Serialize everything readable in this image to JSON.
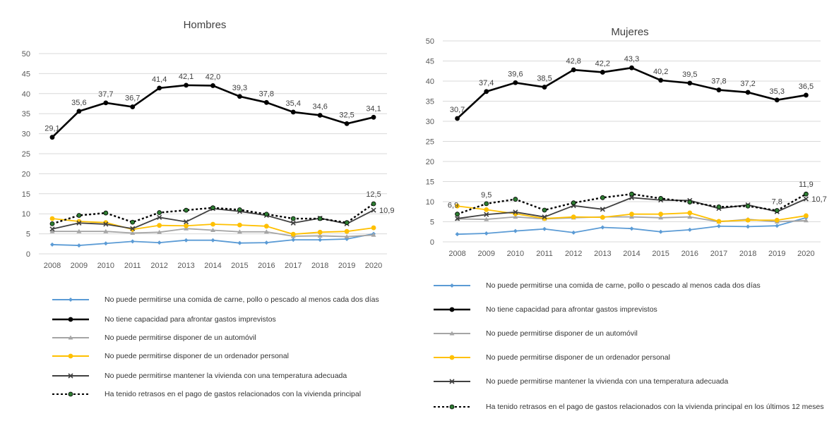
{
  "colors": {
    "s1": "#5b9bd5",
    "s2": "#000000",
    "s3": "#a5a5a5",
    "s4": "#ffc000",
    "s5": "#404040",
    "s6": "#000000",
    "s6_marker": "#2e7d32",
    "grid": "#d9d9d9",
    "axis_text": "#595959"
  },
  "chart_data": [
    {
      "type": "line",
      "title": "Hombres",
      "ylim": [
        0,
        50
      ],
      "y_ticks": [
        0,
        5,
        10,
        15,
        20,
        25,
        30,
        35,
        40,
        45,
        50
      ],
      "grid": true,
      "legend_position": "bottom",
      "x": [
        "2008",
        "2009",
        "2010",
        "2011",
        "2012",
        "2013",
        "2014",
        "2015",
        "2016",
        "2017",
        "2018",
        "2019",
        "2020"
      ],
      "series": [
        {
          "key": "s1",
          "name": "No puede permitirse una comida de carne, pollo o pescado al menos cada dos días",
          "marker": "diamond",
          "values": [
            2.3,
            2.1,
            2.6,
            3.1,
            2.8,
            3.4,
            3.4,
            2.7,
            2.8,
            3.5,
            3.5,
            3.7,
            5.0
          ],
          "labels": []
        },
        {
          "key": "s2",
          "name": "No tiene capacidad para afrontar gastos imprevistos",
          "marker": "circle",
          "values": [
            29.1,
            35.6,
            37.7,
            36.7,
            41.4,
            42.1,
            42.0,
            39.3,
            37.8,
            35.4,
            34.6,
            32.5,
            34.1
          ],
          "labels": [
            "29,1",
            "35,6",
            "37,7",
            "36,7",
            "41,4",
            "42,1",
            "42,0",
            "39,3",
            "37,8",
            "35,4",
            "34,6",
            "32,5",
            "34,1"
          ]
        },
        {
          "key": "s3",
          "name": "No puede permitirse disponer de un automóvil",
          "marker": "triangle",
          "values": [
            5.6,
            5.6,
            5.6,
            5.2,
            5.4,
            6.3,
            5.9,
            5.5,
            5.5,
            4.4,
            4.5,
            4.3,
            4.7
          ],
          "labels": []
        },
        {
          "key": "s4",
          "name": "No puede permitirse disponer de un ordenador personal",
          "marker": "circle",
          "values": [
            8.8,
            8.1,
            7.8,
            6.1,
            7.1,
            7.0,
            7.4,
            7.2,
            6.9,
            4.9,
            5.4,
            5.6,
            6.5
          ],
          "labels": []
        },
        {
          "key": "s5",
          "name": "No puede permitirse mantener la vivienda con una temperatura adecuada",
          "marker": "x",
          "values": [
            6.2,
            7.7,
            7.4,
            6.3,
            9.1,
            8.0,
            11.3,
            10.6,
            9.6,
            7.7,
            8.9,
            7.5,
            10.9
          ],
          "labels": [
            "",
            "",
            "",
            "",
            "",
            "",
            "",
            "",
            "",
            "",
            "",
            "",
            "10,9"
          ]
        },
        {
          "key": "s6",
          "name": "Ha tenido retrasos en el pago de gastos relacionados con la vivienda principal",
          "marker": "dot",
          "dashed": true,
          "values": [
            7.5,
            9.6,
            10.2,
            7.9,
            10.3,
            10.9,
            11.5,
            11.0,
            9.9,
            8.8,
            8.8,
            7.8,
            12.5
          ],
          "labels": [
            "",
            "",
            "",
            "",
            "",
            "",
            "",
            "",
            "",
            "",
            "",
            "",
            "12,5"
          ]
        }
      ]
    },
    {
      "type": "line",
      "title": "Mujeres",
      "ylim": [
        0,
        50
      ],
      "y_ticks": [
        0,
        5,
        10,
        15,
        20,
        25,
        30,
        35,
        40,
        45,
        50
      ],
      "grid": true,
      "legend_position": "bottom",
      "x": [
        "2008",
        "2009",
        "2010",
        "2011",
        "2012",
        "2013",
        "2014",
        "2015",
        "2016",
        "2017",
        "2018",
        "2019",
        "2020"
      ],
      "series": [
        {
          "key": "s1",
          "name": "No puede permitirse una comida de carne, pollo o pescado al menos cada dos días",
          "marker": "diamond",
          "values": [
            1.9,
            2.1,
            2.7,
            3.2,
            2.3,
            3.6,
            3.3,
            2.5,
            3.0,
            3.9,
            3.8,
            4.0,
            6.0
          ],
          "labels": []
        },
        {
          "key": "s2",
          "name": "No tiene capacidad para afrontar gastos imprevistos",
          "marker": "circle",
          "values": [
            30.7,
            37.4,
            39.6,
            38.5,
            42.8,
            42.2,
            43.3,
            40.2,
            39.5,
            37.8,
            37.2,
            35.3,
            36.5
          ],
          "labels": [
            "30,7",
            "37,4",
            "39,6",
            "38,5",
            "42,8",
            "42,2",
            "43,3",
            "40,2",
            "39,5",
            "37,8",
            "37,2",
            "35,3",
            "36,5"
          ]
        },
        {
          "key": "s3",
          "name": "No puede permitirse disponer de un automóvil",
          "marker": "triangle",
          "values": [
            5.7,
            5.6,
            6.2,
            5.7,
            6.0,
            6.2,
            6.2,
            6.0,
            6.2,
            5.0,
            5.6,
            5.0,
            5.3
          ],
          "labels": []
        },
        {
          "key": "s4",
          "name": "No puede permitirse disponer de un ordenador personal",
          "marker": "circle",
          "values": [
            8.9,
            8.0,
            7.0,
            5.8,
            6.2,
            6.1,
            6.9,
            6.9,
            7.2,
            5.1,
            5.4,
            5.4,
            6.5
          ],
          "labels": []
        },
        {
          "key": "s5",
          "name": "No puede permitirse mantener la vivienda con una temperatura adecuada",
          "marker": "x",
          "values": [
            5.8,
            6.8,
            7.4,
            6.2,
            9.0,
            8.1,
            11.0,
            10.4,
            10.3,
            8.3,
            9.2,
            7.5,
            10.7
          ],
          "labels": [
            "",
            "",
            "",
            "",
            "",
            "",
            "",
            "",
            "",
            "",
            "",
            "",
            "10,7"
          ]
        },
        {
          "key": "s6",
          "name": "Ha tenido retrasos en el pago de gastos relacionados con la vivienda principal en los últimos 12 meses",
          "marker": "dot",
          "dashed": true,
          "values": [
            6.9,
            9.5,
            10.6,
            7.9,
            9.7,
            11.0,
            11.9,
            10.8,
            9.9,
            8.7,
            8.9,
            7.8,
            11.9
          ],
          "labels": [
            "6,9",
            "9,5",
            "",
            "",
            "",
            "",
            "",
            "",
            "",
            "",
            "",
            "7,8",
            "11,9"
          ]
        }
      ]
    }
  ],
  "legend_left": [
    {
      "key": "s1",
      "label": "No puede permitirse una comida de carne, pollo o pescado al menos cada dos días"
    },
    {
      "key": "s2",
      "label": "No tiene capacidad para afrontar gastos imprevistos"
    },
    {
      "key": "s3",
      "label": "No puede permitirse disponer de un automóvil"
    },
    {
      "key": "s4",
      "label": "No puede permitirse disponer de un ordenador personal"
    },
    {
      "key": "s5",
      "label": "No puede permitirse mantener la vivienda con una temperatura adecuada"
    },
    {
      "key": "s6",
      "label": "Ha tenido retrasos en el pago de gastos relacionados con la vivienda principal"
    }
  ],
  "legend_right": [
    {
      "key": "s1",
      "label": "No puede permitirse una comida de carne, pollo o pescado al menos cada dos días"
    },
    {
      "key": "s2",
      "label": "No tiene capacidad para afrontar gastos imprevistos"
    },
    {
      "key": "s3",
      "label": "No puede permitirse disponer de un automóvil"
    },
    {
      "key": "s4",
      "label": "No puede permitirse disponer de un ordenador personal"
    },
    {
      "key": "s5",
      "label": "No puede permitirse mantener la vivienda con una temperatura adecuada"
    },
    {
      "key": "s6",
      "label": "Ha tenido retrasos en el pago de gastos relacionados con la vivienda principal en los últimos 12 meses"
    }
  ]
}
